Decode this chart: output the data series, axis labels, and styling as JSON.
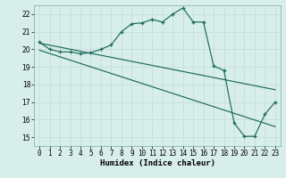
{
  "xlabel": "Humidex (Indice chaleur)",
  "bg_color": "#d8eeea",
  "line_color": "#1a6b5a",
  "xlim": [
    -0.5,
    23.5
  ],
  "ylim": [
    14.5,
    22.5
  ],
  "xticks": [
    0,
    1,
    2,
    3,
    4,
    5,
    6,
    7,
    8,
    9,
    10,
    11,
    12,
    13,
    14,
    15,
    16,
    17,
    18,
    19,
    20,
    21,
    22,
    23
  ],
  "yticks": [
    15,
    16,
    17,
    18,
    19,
    20,
    21,
    22
  ],
  "main_x": [
    0,
    1,
    2,
    3,
    4,
    5,
    6,
    7,
    8,
    9,
    10,
    11,
    12,
    13,
    14,
    15,
    16,
    17,
    18,
    19,
    20,
    21,
    22,
    23
  ],
  "main_y": [
    20.4,
    20.0,
    19.85,
    19.85,
    19.75,
    19.8,
    20.0,
    20.25,
    21.0,
    21.45,
    21.5,
    21.7,
    21.55,
    22.0,
    22.35,
    21.55,
    21.55,
    19.05,
    18.8,
    15.8,
    15.05,
    15.05,
    16.3,
    17.0
  ],
  "line1_x": [
    0,
    23
  ],
  "line1_y": [
    20.35,
    17.7
  ],
  "line2_x": [
    0,
    23
  ],
  "line2_y": [
    19.95,
    15.6
  ],
  "grid_color": "#c8dedd",
  "spine_color": "#7aaba5"
}
